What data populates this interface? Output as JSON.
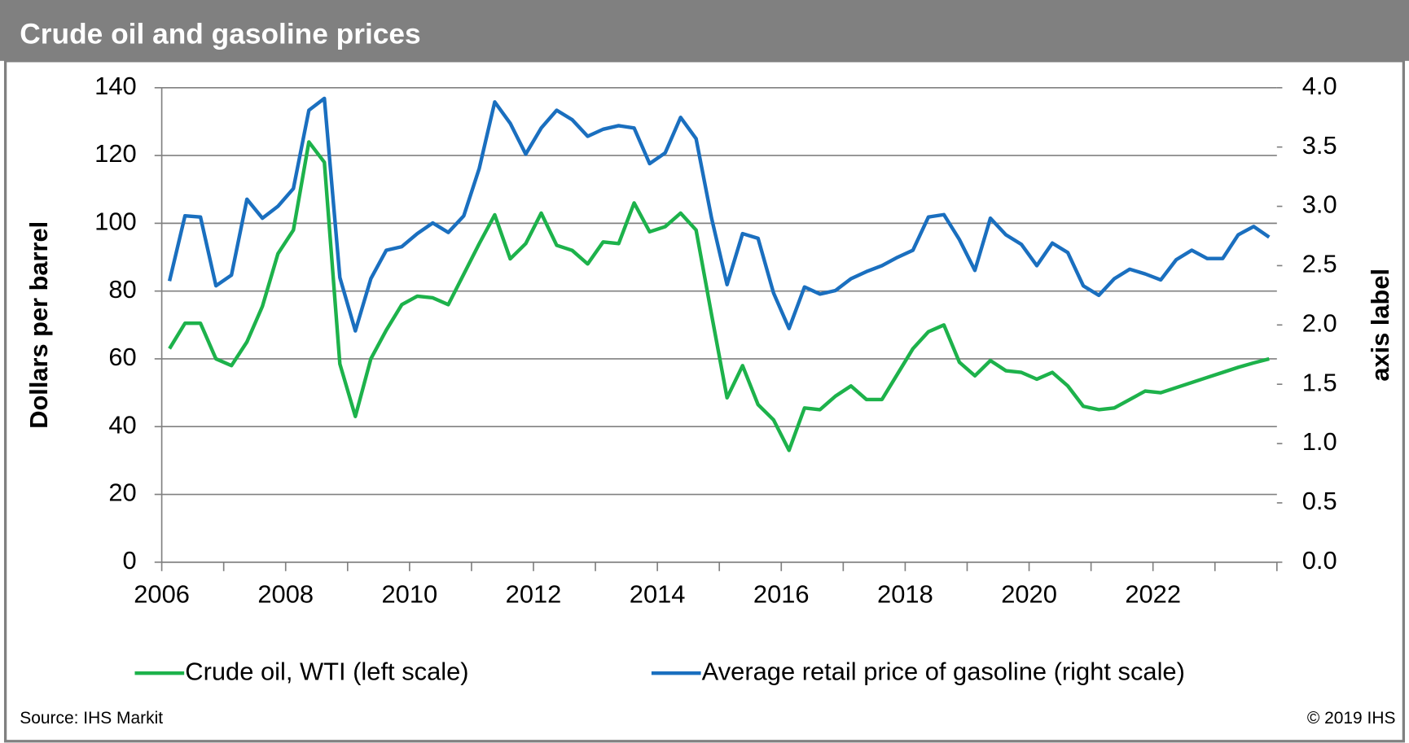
{
  "chart_data": {
    "type": "line",
    "title": "Crude oil and gasoline prices",
    "ylabel": "Dollars per barrel",
    "y2label": "axis label",
    "source": "Source: IHS Markit",
    "copyright": "© 2019 IHS",
    "xlim": [
      2006,
      2024
    ],
    "xticks": [
      2006,
      2008,
      2010,
      2012,
      2014,
      2016,
      2018,
      2020,
      2022
    ],
    "ylim": [
      0,
      140
    ],
    "yticks": [
      0,
      20,
      40,
      60,
      80,
      100,
      120,
      140
    ],
    "y2lim": [
      0,
      4
    ],
    "y2ticks": [
      {
        "value": 0,
        "label": "0.0"
      },
      {
        "value": 0.5,
        "label": "0.5"
      },
      {
        "value": 1,
        "label": "1.0"
      },
      {
        "value": 1.5,
        "label": "1.5"
      },
      {
        "value": 2,
        "label": "2.0"
      },
      {
        "value": 2.5,
        "label": "2.5"
      },
      {
        "value": 3,
        "label": "3.0"
      },
      {
        "value": 3.5,
        "label": "3.5"
      },
      {
        "value": 4,
        "label": "4.0"
      }
    ],
    "grid": true,
    "legend": "bottom",
    "x": [
      2006.125,
      2006.375,
      2006.625,
      2006.875,
      2007.125,
      2007.375,
      2007.625,
      2007.875,
      2008.125,
      2008.375,
      2008.625,
      2008.875,
      2009.125,
      2009.375,
      2009.625,
      2009.875,
      2010.125,
      2010.375,
      2010.625,
      2010.875,
      2011.125,
      2011.375,
      2011.625,
      2011.875,
      2012.125,
      2012.375,
      2012.625,
      2012.875,
      2013.125,
      2013.375,
      2013.625,
      2013.875,
      2014.125,
      2014.375,
      2014.625,
      2014.875,
      2015.125,
      2015.375,
      2015.625,
      2015.875,
      2016.125,
      2016.375,
      2016.625,
      2016.875,
      2017.125,
      2017.375,
      2017.625,
      2017.875,
      2018.125,
      2018.375,
      2018.625,
      2018.875,
      2019.125,
      2019.375,
      2019.625,
      2019.875,
      2020.125,
      2020.375,
      2020.625,
      2020.875,
      2021.125,
      2021.375,
      2021.625,
      2021.875,
      2022.125,
      2022.375,
      2022.625,
      2022.875,
      2023.125,
      2023.375,
      2023.625,
      2023.875
    ],
    "series": [
      {
        "name": "Crude oil, WTI (left scale)",
        "color": "#1db24b",
        "axis": "y",
        "values": [
          63,
          70.5,
          70.5,
          60,
          58,
          65,
          75.5,
          91,
          98,
          124,
          118,
          58.5,
          43,
          60,
          68.5,
          76,
          78.5,
          78,
          76,
          85,
          94,
          102.5,
          89.5,
          94,
          103,
          93.5,
          92,
          88,
          94.5,
          94,
          106,
          97.5,
          99,
          103,
          98,
          73,
          48.5,
          58,
          46.5,
          42,
          33,
          45.5,
          45,
          49,
          52,
          48,
          48,
          55.5,
          63,
          68,
          70,
          59,
          55,
          59.5,
          56.5,
          56,
          54,
          56,
          52,
          46,
          45,
          45.5,
          48,
          50.5,
          50,
          51.5,
          53,
          54.5,
          56,
          57.5,
          58.8,
          60
        ]
      },
      {
        "name": "Average retail price of gasoline (right scale)",
        "color": "#1a6fbf",
        "axis": "y2",
        "values": [
          2.37,
          2.92,
          2.91,
          2.33,
          2.42,
          3.06,
          2.9,
          3.0,
          3.15,
          3.81,
          3.91,
          2.4,
          1.95,
          2.39,
          2.63,
          2.66,
          2.77,
          2.86,
          2.78,
          2.92,
          3.32,
          3.88,
          3.7,
          3.44,
          3.66,
          3.81,
          3.73,
          3.59,
          3.65,
          3.68,
          3.66,
          3.36,
          3.45,
          3.75,
          3.57,
          2.9,
          2.34,
          2.77,
          2.73,
          2.27,
          1.97,
          2.32,
          2.26,
          2.29,
          2.39,
          2.45,
          2.5,
          2.57,
          2.63,
          2.91,
          2.93,
          2.72,
          2.46,
          2.9,
          2.76,
          2.68,
          2.5,
          2.69,
          2.61,
          2.33,
          2.25,
          2.39,
          2.47,
          2.43,
          2.38,
          2.55,
          2.63,
          2.56,
          2.56,
          2.76,
          2.83,
          2.74
        ]
      }
    ]
  }
}
